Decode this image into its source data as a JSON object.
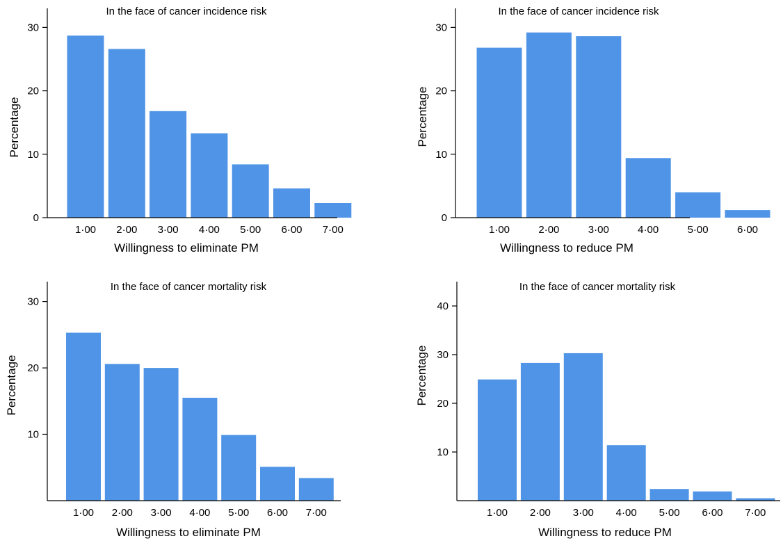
{
  "chart_data": [
    {
      "type": "bar",
      "title": "In the face of cancer incidence risk",
      "xlabel": "Willingness to eliminate PM",
      "ylabel": "Percentage",
      "categories": [
        "1·00",
        "2·00",
        "3·00",
        "4·00",
        "5·00",
        "6·00",
        "7·00"
      ],
      "values": [
        28.7,
        26.6,
        16.8,
        13.3,
        8.4,
        4.6,
        2.3
      ],
      "yticks": [
        0,
        10,
        20,
        30
      ],
      "ylim": [
        0,
        33
      ],
      "grid": false,
      "color": "#4f94e6"
    },
    {
      "type": "bar",
      "title": "In the face of cancer incidence risk",
      "xlabel": "Willingness to reduce PM",
      "ylabel": "Percentage",
      "categories": [
        "1·00",
        "2·00",
        "3·00",
        "4·00",
        "5·00",
        "6·00"
      ],
      "values": [
        26.8,
        29.2,
        28.6,
        9.4,
        4.0,
        1.2
      ],
      "yticks": [
        0,
        10,
        20,
        30
      ],
      "ylim": [
        0,
        33
      ],
      "grid": false,
      "color": "#4f94e6"
    },
    {
      "type": "bar",
      "title": "In the face of cancer mortality risk",
      "xlabel": "Willingness to eliminate PM",
      "ylabel": "Percentage",
      "categories": [
        "1·00",
        "2·00",
        "3·00",
        "4·00",
        "5·00",
        "6·00",
        "7·00"
      ],
      "values": [
        25.3,
        20.6,
        20.0,
        15.5,
        9.9,
        5.1,
        3.4
      ],
      "yticks": [
        10,
        20,
        30
      ],
      "ylim": [
        0,
        33
      ],
      "grid": false,
      "color": "#4f94e6"
    },
    {
      "type": "bar",
      "title": "In the face of cancer mortality risk",
      "xlabel": "Willingness to reduce PM",
      "ylabel": "Percentage",
      "categories": [
        "1·00",
        "2·00",
        "3·00",
        "4·00",
        "5·00",
        "6·00",
        "7·00"
      ],
      "values": [
        24.9,
        28.3,
        30.3,
        11.4,
        2.4,
        1.9,
        0.5
      ],
      "yticks": [
        10,
        20,
        30,
        40
      ],
      "ylim": [
        0,
        45
      ],
      "grid": false,
      "color": "#4f94e6"
    }
  ]
}
